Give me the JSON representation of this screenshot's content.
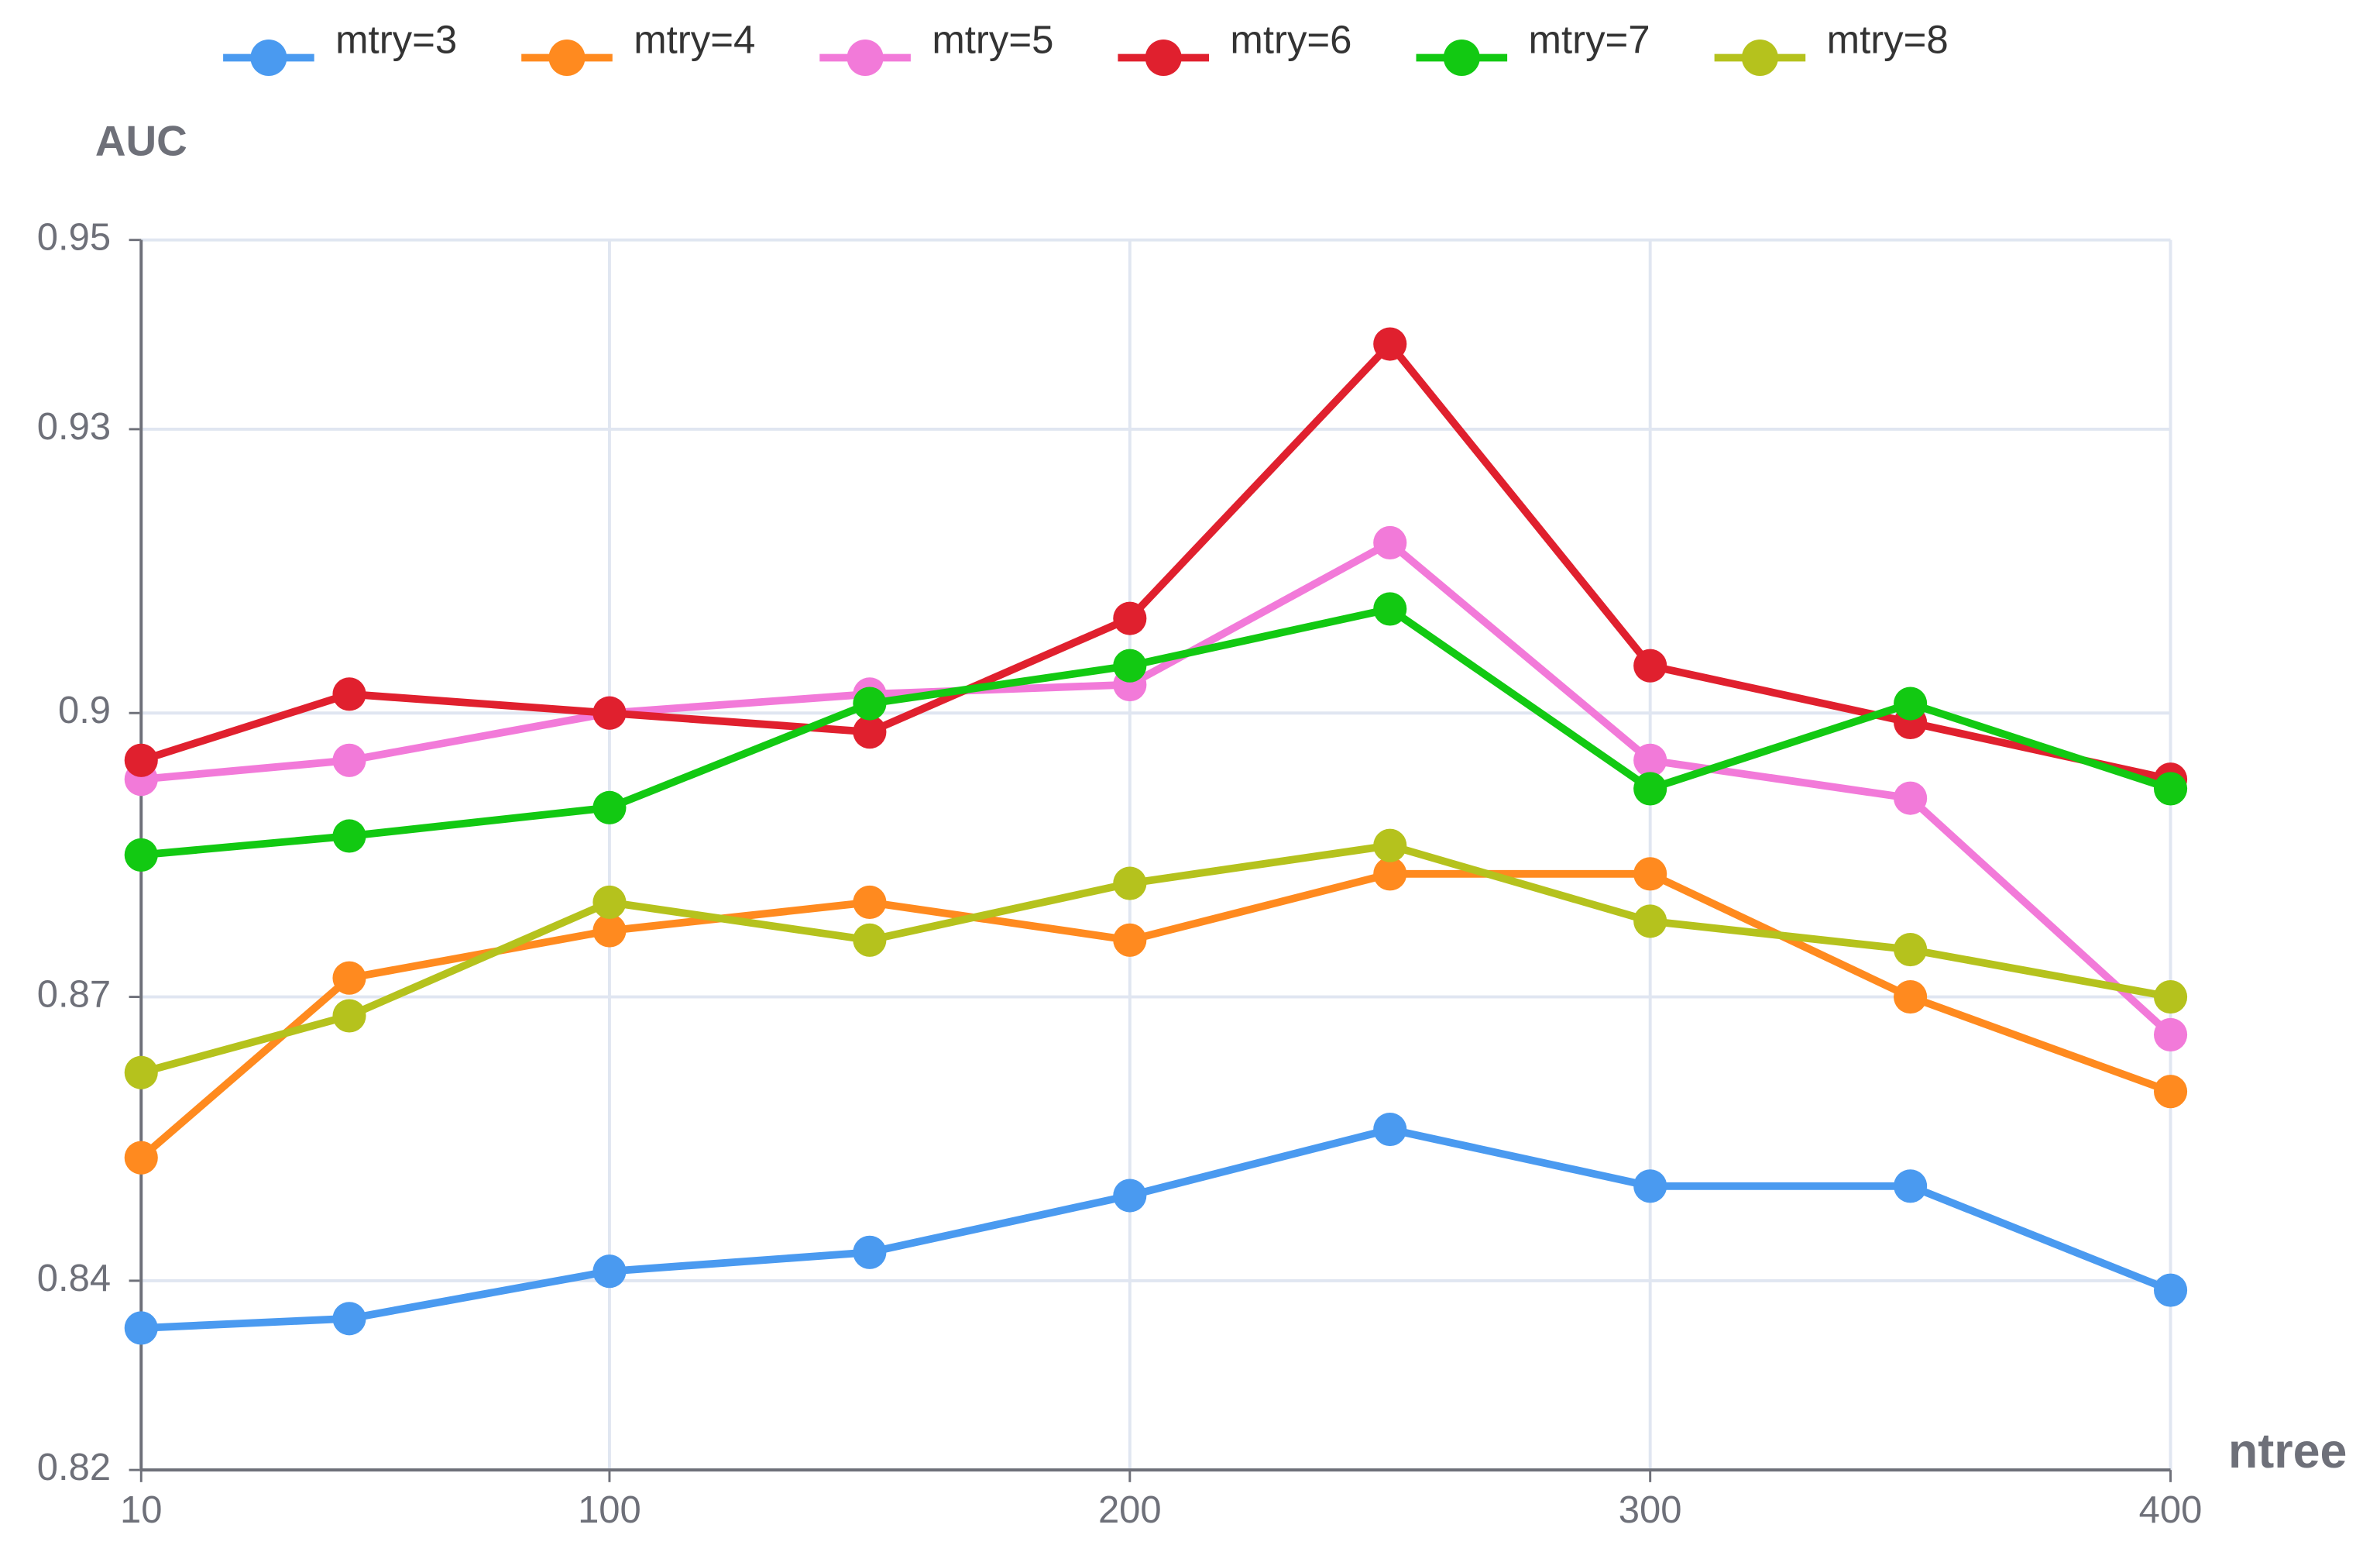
{
  "chart_data": {
    "type": "line",
    "x_label": "ntree",
    "y_label": "AUC",
    "x": [
      10,
      50,
      100,
      150,
      200,
      250,
      300,
      350,
      400
    ],
    "xlim": [
      10,
      400
    ],
    "xticks": [
      10,
      100,
      200,
      300,
      400
    ],
    "ylim": [
      0.82,
      0.95
    ],
    "yticks": [
      0.82,
      0.84,
      0.87,
      0.9,
      0.93,
      0.95
    ],
    "grid": true,
    "legend": "top",
    "series": [
      {
        "name": "mtry=3",
        "color": "#4a9af0",
        "values": [
          0.835,
          0.836,
          0.841,
          0.843,
          0.849,
          0.856,
          0.85,
          0.85,
          0.839
        ]
      },
      {
        "name": "mtry=4",
        "color": "#ff8a1f",
        "values": [
          0.853,
          0.872,
          0.877,
          0.88,
          0.876,
          0.883,
          0.883,
          0.87,
          0.86
        ]
      },
      {
        "name": "mtry=5",
        "color": "#f27ad9",
        "values": [
          0.893,
          0.895,
          0.9,
          0.902,
          0.903,
          0.918,
          0.895,
          0.891,
          0.866
        ]
      },
      {
        "name": "mtry=6",
        "color": "#e0202e",
        "values": [
          0.895,
          0.902,
          0.9,
          0.898,
          0.91,
          0.939,
          0.905,
          0.899,
          0.893
        ]
      },
      {
        "name": "mtry=7",
        "color": "#12c912",
        "values": [
          0.885,
          0.887,
          0.89,
          0.901,
          0.905,
          0.911,
          0.892,
          0.901,
          0.892
        ]
      },
      {
        "name": "mtry=8",
        "color": "#b5c21d",
        "values": [
          0.862,
          0.868,
          0.88,
          0.876,
          0.882,
          0.886,
          0.878,
          0.875,
          0.87
        ]
      }
    ]
  }
}
